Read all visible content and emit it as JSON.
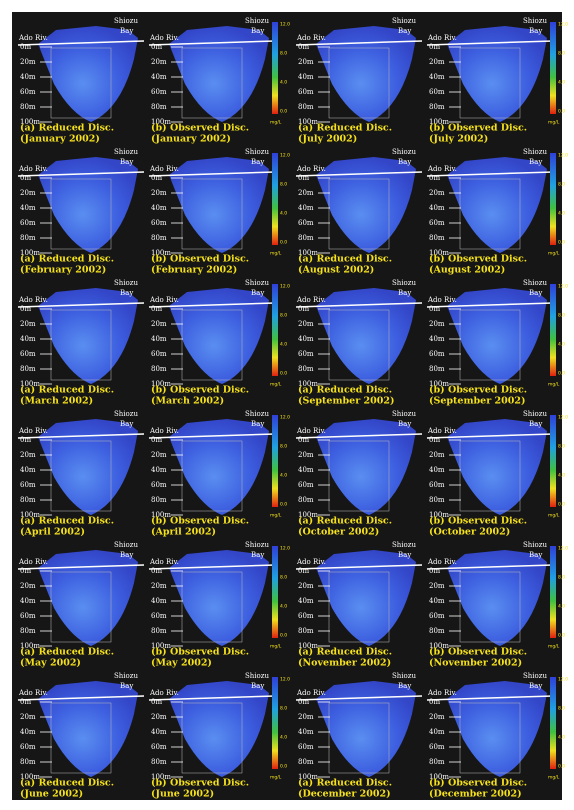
{
  "figure": {
    "place_labels": {
      "bay_line1": "Shiozu",
      "bay_line2": "Bay",
      "river": "Ado Riv."
    },
    "depth_labels": [
      "0m",
      "20m",
      "40m",
      "60m",
      "80m",
      "100m"
    ],
    "colorbar": {
      "ticks": [
        "12.0",
        "8.0",
        "4.0",
        "0.0"
      ],
      "unit": "mg/L"
    },
    "panel_titles": {
      "a": "(a) Reduced Disc.",
      "b": "(b) Observed Disc."
    },
    "months": [
      "(January 2002)",
      "(February 2002)",
      "(March 2002)",
      "(April 2002)",
      "(May 2002)",
      "(June 2002)",
      "(July 2002)",
      "(August 2002)",
      "(September 2002)",
      "(October 2002)",
      "(November 2002)",
      "(December 2002)"
    ]
  }
}
